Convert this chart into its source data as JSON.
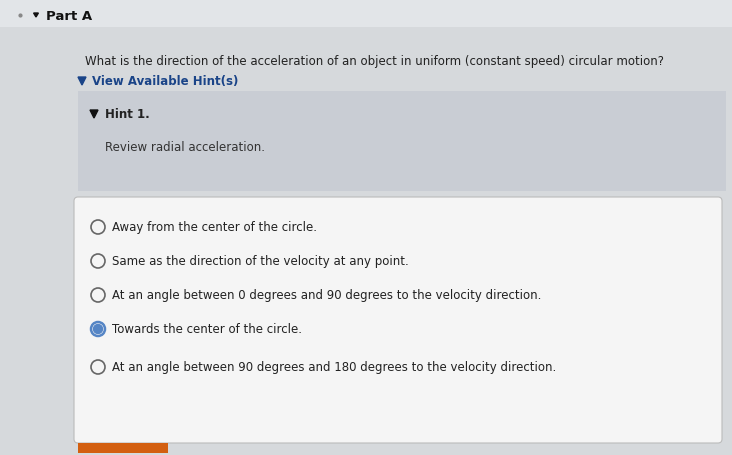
{
  "title": "Part A",
  "question": "What is the direction of the acceleration of an object in uniform (constant speed) circular motion?",
  "hint_label": "View Available Hint(s)",
  "hint_title": "Hint 1.",
  "hint_text": "Review radial acceleration.",
  "options": [
    "Away from the center of the circle.",
    "Same as the direction of the velocity at any point.",
    "At an angle between 0 degrees and 90 degrees to the velocity direction.",
    "Towards the center of the circle.",
    "At an angle between 90 degrees and 180 degrees to the velocity direction."
  ],
  "selected_index": 3,
  "bg_color": "#d6d9dc",
  "header_bg": "#dcdfe3",
  "hint_bg": "#c9cdd4",
  "options_box_bg": "#f5f5f5",
  "text_color": "#222222",
  "hint_text_color": "#333333",
  "selected_circle_color": "#5585c5",
  "unselected_circle_color": "#666666",
  "part_a_color": "#111111",
  "view_hint_color": "#1a4488",
  "bottom_bar_color": "#d35f10",
  "header_line_color": "#bbbbbb",
  "options_border_color": "#bbbbbb"
}
